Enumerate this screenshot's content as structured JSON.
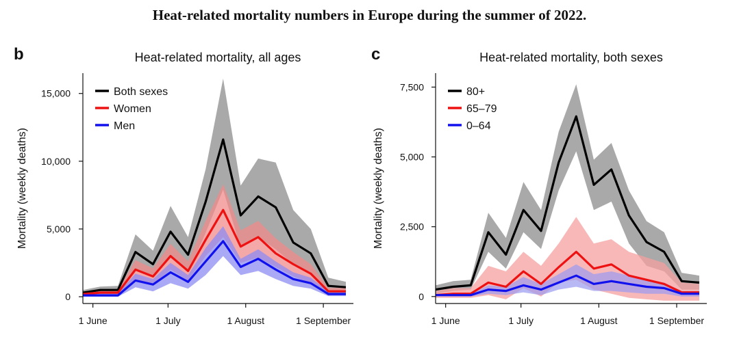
{
  "figure_title": "Heat-related mortality numbers in Europe during the summer of 2022.",
  "chart_data": [
    {
      "panel": "b",
      "type": "line",
      "title": "Heat-related mortality, all ages",
      "xlabel": "",
      "ylabel": "Mortality (weekly deaths)",
      "x_tick_labels": [
        "1 June",
        "1 July",
        "1 August",
        "1 September"
      ],
      "x_tick_days": [
        0,
        30,
        61,
        92
      ],
      "x_days": [
        -4,
        3,
        10,
        17,
        24,
        31,
        38,
        45,
        52,
        59,
        66,
        73,
        80,
        87,
        94,
        101
      ],
      "xlim": [
        -4,
        104
      ],
      "ylim": [
        -500,
        16500
      ],
      "y_ticks": [
        0,
        5000,
        10000,
        15000
      ],
      "y_tick_labels": [
        "0",
        "5,000",
        "10,000",
        "15,000"
      ],
      "legend": "top-left",
      "series": [
        {
          "name": "Both sexes",
          "color": "#000000",
          "band_color": "#a9a9a9",
          "band_opacity": 1,
          "values": [
            300,
            500,
            500,
            3300,
            2400,
            4800,
            3100,
            7000,
            11600,
            6000,
            7400,
            6600,
            4000,
            3200,
            800,
            700
          ],
          "lower": [
            150,
            250,
            250,
            2000,
            1500,
            2900,
            1800,
            4700,
            7900,
            3600,
            4400,
            3500,
            2400,
            1800,
            300,
            300
          ],
          "upper": [
            500,
            750,
            800,
            4600,
            3400,
            6700,
            4400,
            9400,
            16100,
            8200,
            10200,
            9900,
            6400,
            5000,
            1400,
            1100
          ]
        },
        {
          "name": "Women",
          "color": "#ee1111",
          "band_color": "#f28b8b",
          "band_opacity": 0.75,
          "values": [
            200,
            300,
            300,
            2000,
            1500,
            3000,
            1900,
            4200,
            6400,
            3700,
            4400,
            3200,
            2400,
            1700,
            400,
            400
          ],
          "lower": [
            100,
            150,
            150,
            1300,
            900,
            2000,
            1200,
            3000,
            4400,
            2500,
            2900,
            2200,
            1500,
            1000,
            150,
            150
          ],
          "upper": [
            350,
            450,
            450,
            2700,
            2100,
            3900,
            2600,
            5600,
            8300,
            4900,
            5600,
            4300,
            3300,
            2400,
            650,
            650
          ]
        },
        {
          "name": "Men",
          "color": "#1111ee",
          "band_color": "#8c8cf2",
          "band_opacity": 0.75,
          "values": [
            100,
            100,
            100,
            1200,
            900,
            1800,
            1100,
            2600,
            4100,
            2200,
            2800,
            2000,
            1300,
            1000,
            200,
            200
          ],
          "lower": [
            0,
            0,
            0,
            700,
            400,
            1000,
            600,
            1600,
            3000,
            1600,
            1900,
            1300,
            800,
            600,
            50,
            50
          ],
          "upper": [
            250,
            250,
            250,
            1700,
            1300,
            2500,
            1600,
            3600,
            5200,
            2800,
            3500,
            2600,
            1800,
            1400,
            400,
            400
          ]
        }
      ]
    },
    {
      "panel": "c",
      "type": "line",
      "title": "Heat-related mortality, both sexes",
      "xlabel": "",
      "ylabel": "Mortality (weekly deaths)",
      "x_tick_labels": [
        "1 June",
        "1 July",
        "1 August",
        "1 September"
      ],
      "x_tick_days": [
        0,
        30,
        61,
        92
      ],
      "x_days": [
        -4,
        3,
        10,
        17,
        24,
        31,
        38,
        45,
        52,
        59,
        66,
        73,
        80,
        87,
        94,
        101
      ],
      "xlim": [
        -4,
        104
      ],
      "ylim": [
        -250,
        8000
      ],
      "y_ticks": [
        0,
        2500,
        5000,
        7500
      ],
      "y_tick_labels": [
        "0",
        "2,500",
        "5,000",
        "7,500"
      ],
      "legend": "top-left",
      "series": [
        {
          "name": "80+",
          "color": "#000000",
          "band_color": "#a9a9a9",
          "band_opacity": 1,
          "values": [
            250,
            350,
            400,
            2300,
            1500,
            3100,
            2350,
            4800,
            6450,
            4000,
            4550,
            2900,
            1950,
            1600,
            550,
            500
          ],
          "lower": [
            100,
            200,
            250,
            1600,
            1000,
            2300,
            1700,
            3800,
            5200,
            3100,
            3400,
            1900,
            1100,
            900,
            250,
            250
          ],
          "upper": [
            400,
            550,
            600,
            3000,
            2100,
            4100,
            3100,
            5900,
            7600,
            4900,
            5500,
            3800,
            2700,
            2300,
            850,
            750
          ]
        },
        {
          "name": "65–79",
          "color": "#ee1111",
          "band_color": "#f5a0a0",
          "band_opacity": 0.75,
          "values": [
            50,
            100,
            100,
            500,
            350,
            900,
            450,
            1050,
            1600,
            1000,
            1150,
            750,
            600,
            450,
            150,
            150
          ],
          "lower": [
            -50,
            -50,
            -50,
            50,
            -100,
            300,
            0,
            500,
            600,
            250,
            100,
            -50,
            -100,
            -150,
            -150,
            -150
          ],
          "upper": [
            200,
            300,
            300,
            1100,
            900,
            1600,
            1100,
            1900,
            2850,
            1900,
            2050,
            1600,
            1400,
            1200,
            500,
            450
          ]
        },
        {
          "name": "0–64",
          "color": "#1111ee",
          "band_color": "#9a9af0",
          "band_opacity": 0.7,
          "values": [
            50,
            50,
            50,
            250,
            200,
            400,
            250,
            500,
            750,
            450,
            550,
            450,
            350,
            300,
            100,
            100
          ],
          "lower": [
            0,
            0,
            0,
            100,
            50,
            150,
            50,
            250,
            350,
            200,
            200,
            150,
            100,
            100,
            0,
            0
          ],
          "upper": [
            100,
            100,
            100,
            400,
            350,
            700,
            450,
            800,
            1150,
            800,
            900,
            750,
            600,
            500,
            200,
            200
          ]
        }
      ]
    }
  ]
}
